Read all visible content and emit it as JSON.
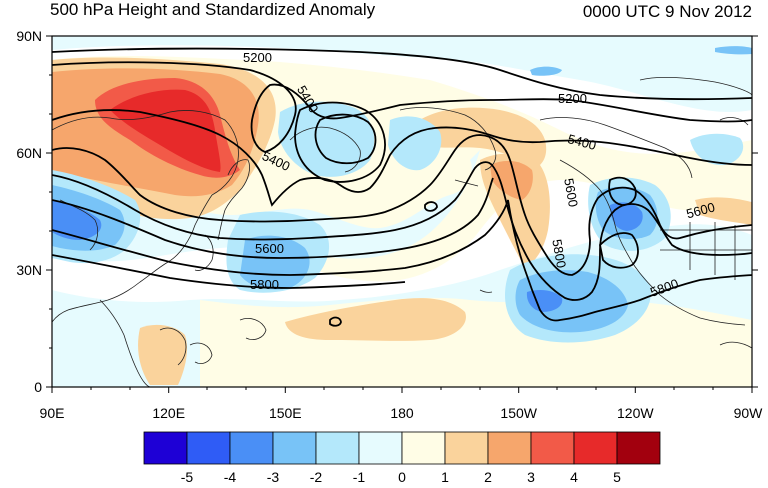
{
  "header": {
    "title": "500 hPa Height and Standardized Anomaly",
    "valid_time": "0000 UTC 9 Nov 2012"
  },
  "map": {
    "lat_labels": [
      "90N",
      "60N",
      "30N",
      "0"
    ],
    "lon_labels": [
      "90E",
      "120E",
      "150E",
      "180",
      "150W",
      "120W",
      "90W"
    ],
    "contour_labels": [
      "5200",
      "5200",
      "5400",
      "5400",
      "5400",
      "5600",
      "5600",
      "5600",
      "5800",
      "5800",
      "5800"
    ]
  },
  "colorbar": {
    "labels": [
      "-5",
      "-4",
      "-3",
      "-2",
      "-1",
      "0",
      "1",
      "2",
      "3",
      "4",
      "5"
    ],
    "colors": [
      "#1e00d6",
      "#2f5cf6",
      "#4a8ff6",
      "#78c3f7",
      "#b4e8fb",
      "#e6fbfe",
      "#fffde6",
      "#fad39c",
      "#f6a66c",
      "#f25a48",
      "#e72a2a",
      "#a2000e"
    ]
  },
  "anomaly_colors": {
    "strong_negative": "#4a8ff6",
    "negative": "#78c3f7",
    "weak_negative": "#b4e8fb",
    "near_zero_cool": "#e6fbfe",
    "near_zero_warm": "#fffde6",
    "weak_positive": "#fad39c",
    "positive": "#f6a66c",
    "strong_positive": "#f25a48",
    "very_strong_positive": "#e72a2a"
  }
}
